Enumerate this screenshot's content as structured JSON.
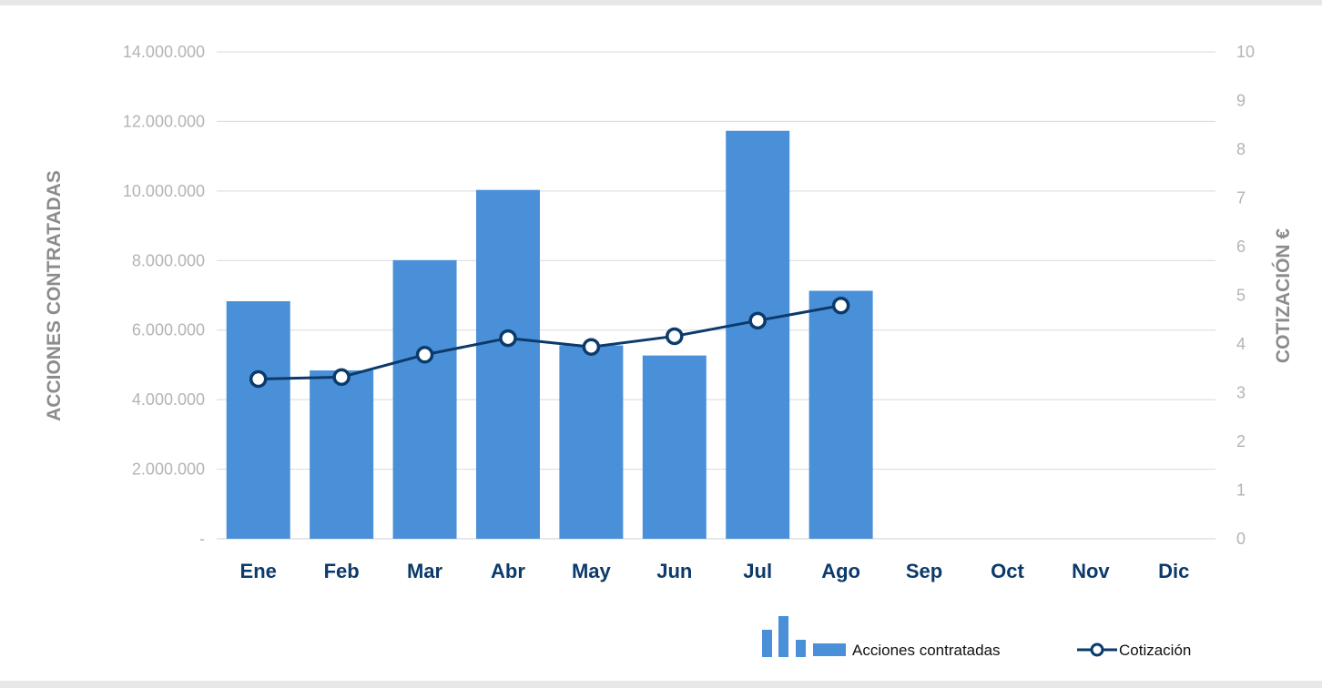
{
  "chart_data": {
    "type": "bar",
    "categories": [
      "Ene",
      "Feb",
      "Mar",
      "Abr",
      "May",
      "Jun",
      "Jul",
      "Ago",
      "Sep",
      "Oct",
      "Nov",
      "Dic"
    ],
    "series": [
      {
        "name": "Acciones contratadas",
        "type": "bar",
        "axis": "left",
        "color": "#4a90d9",
        "values": [
          6830000,
          4840000,
          8010000,
          10030000,
          5560000,
          5270000,
          11730000,
          7130000,
          null,
          null,
          null,
          null
        ]
      },
      {
        "name": "Cotización",
        "type": "line",
        "axis": "right",
        "color": "#0b3a6b",
        "values": [
          3.28,
          3.32,
          3.78,
          4.12,
          3.94,
          4.16,
          4.48,
          4.79,
          null,
          null,
          null,
          null
        ]
      }
    ],
    "ylabel": "ACCIONES CONTRATADAS",
    "y2label": "COTIZACIÓN €",
    "ylim": [
      0,
      14000000
    ],
    "y2lim": [
      0,
      10
    ],
    "yticks": [
      {
        "value": 0,
        "label": "-"
      },
      {
        "value": 2000000,
        "label": "2.000.000"
      },
      {
        "value": 4000000,
        "label": "4.000.000"
      },
      {
        "value": 6000000,
        "label": "6.000.000"
      },
      {
        "value": 8000000,
        "label": "8.000.000"
      },
      {
        "value": 10000000,
        "label": "10.000.000"
      },
      {
        "value": 12000000,
        "label": "12.000.000"
      },
      {
        "value": 14000000,
        "label": "14.000.000"
      }
    ],
    "y2ticks": [
      "0",
      "1",
      "2",
      "3",
      "4",
      "5",
      "6",
      "7",
      "8",
      "9",
      "10"
    ],
    "grid": true,
    "legend_position": "bottom-right"
  }
}
